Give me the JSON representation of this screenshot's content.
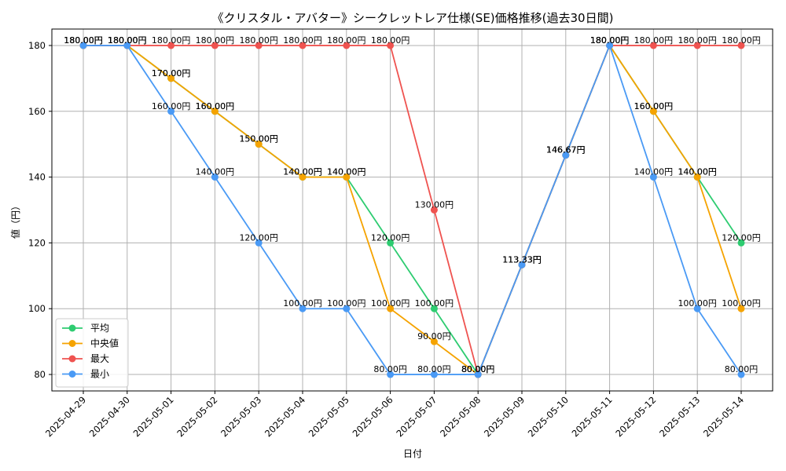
{
  "chart_data": {
    "type": "line",
    "title": "《クリスタル・アバター》シークレットレア仕様(SE)価格推移(過去30日間)",
    "xlabel": "日付",
    "ylabel": "値（円）",
    "ylim": [
      75,
      185
    ],
    "yticks": [
      80,
      100,
      120,
      140,
      160,
      180
    ],
    "grid": true,
    "legend_position": "lower-left",
    "value_suffix": "円",
    "categories": [
      "2025-04-29",
      "2025-04-30",
      "2025-05-01",
      "2025-05-02",
      "2025-05-03",
      "2025-05-04",
      "2025-05-05",
      "2025-05-06",
      "2025-05-07",
      "2025-05-08",
      "2025-05-09",
      "2025-05-10",
      "2025-05-11",
      "2025-05-12",
      "2025-05-13",
      "2025-05-14"
    ],
    "series": [
      {
        "name": "平均",
        "color": "#2ecc71",
        "values": [
          180,
          180,
          170,
          160,
          150,
          140,
          140,
          120,
          100,
          80,
          113.33,
          146.67,
          180,
          160,
          140,
          120
        ]
      },
      {
        "name": "中央値",
        "color": "#f5a300",
        "values": [
          180,
          180,
          170,
          160,
          150,
          140,
          140,
          100,
          90,
          80,
          113.33,
          146.67,
          180,
          160,
          140,
          100
        ]
      },
      {
        "name": "最大",
        "color": "#ef5350",
        "values": [
          180,
          180,
          180,
          180,
          180,
          180,
          180,
          180,
          130,
          80,
          113.33,
          146.67,
          180,
          180,
          180,
          180
        ]
      },
      {
        "name": "最小",
        "color": "#4a9af5",
        "values": [
          180,
          180,
          160,
          140,
          120,
          100,
          100,
          80,
          80,
          80,
          113.33,
          146.67,
          180,
          140,
          100,
          80
        ]
      }
    ]
  }
}
